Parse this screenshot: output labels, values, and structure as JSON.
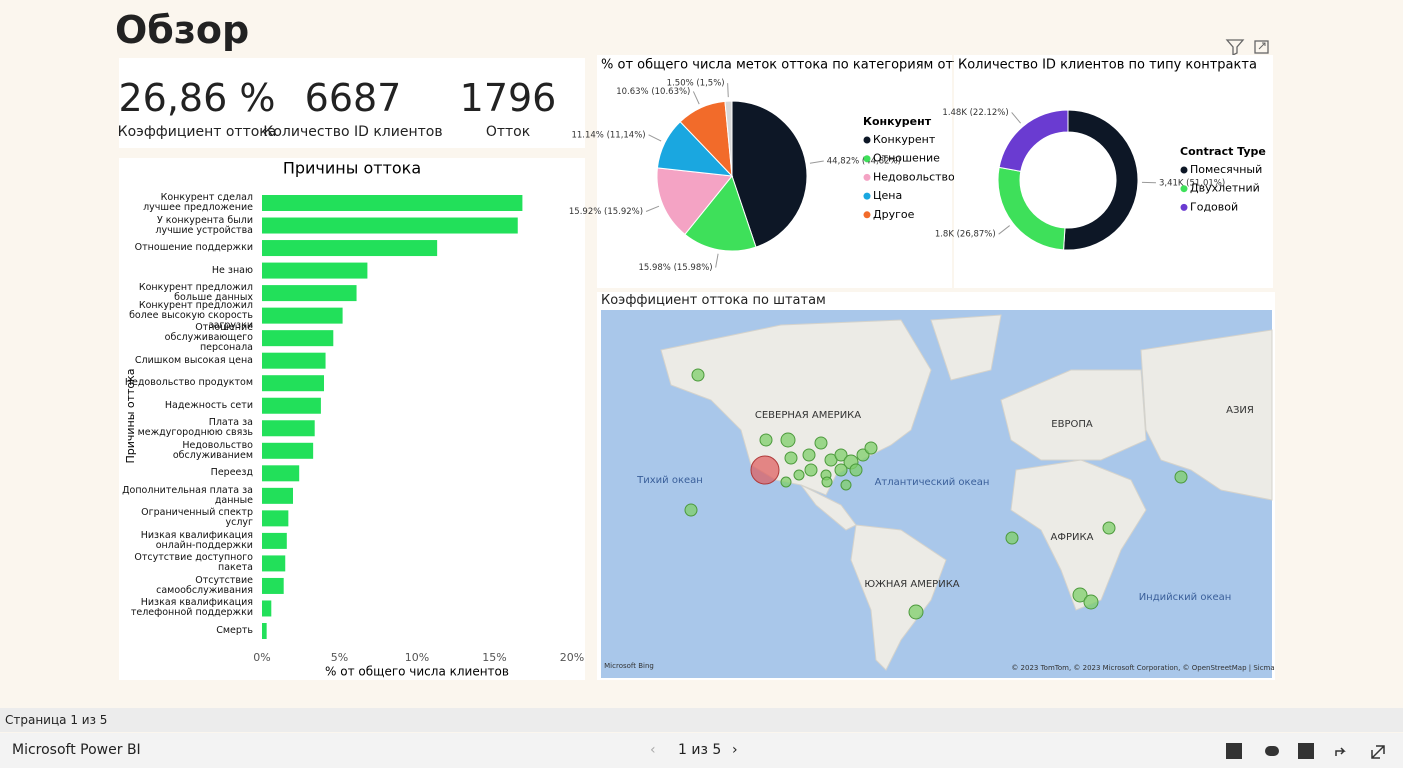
{
  "header": {
    "title": "Обзор"
  },
  "kpis": [
    {
      "value": "26,86 %",
      "label": "Коэффициент оттока"
    },
    {
      "value": "6687",
      "label": "Количество ID клиентов"
    },
    {
      "value": "1796",
      "label": "Отток"
    }
  ],
  "bar_chart": {
    "type": "bar",
    "title": "Причины оттока",
    "y_label": "Причины оттока",
    "x_label": "% от общего числа клиентов",
    "color": "#22e05a",
    "categories": [
      "Конкурент сделал лучшее предложение",
      "У конкурента были лучшие устройства",
      "Отношение поддержки",
      "Не знаю",
      "Конкурент предложил больше данных",
      "Конкурент предложил более высокую скорость загрузки",
      "Отношение обслуживающего персонала",
      "Слишком высокая цена",
      "Недовольство продуктом",
      "Надежность сети",
      "Плата за междугороднюю связь",
      "Недовольство обслуживанием",
      "Переезд",
      "Дополнительная плата за данные",
      "Ограниченный спектр услуг",
      "Низкая квалификация онлайн-поддержки",
      "Отсутствие доступного пакета",
      "Отсутствие самообслуживания",
      "Низкая квалификация телефонной поддержки",
      "Смерть"
    ],
    "values": [
      16.8,
      16.5,
      11.3,
      6.8,
      6.1,
      5.2,
      4.6,
      4.1,
      4.0,
      3.8,
      3.4,
      3.3,
      2.4,
      2.0,
      1.7,
      1.6,
      1.5,
      1.4,
      0.6,
      0.3
    ],
    "xlim": [
      0,
      20
    ],
    "xticks": [
      {
        "value": 0,
        "label": "0%"
      },
      {
        "value": 5,
        "label": "5%"
      },
      {
        "value": 10,
        "label": "10%"
      },
      {
        "value": 15,
        "label": "15%"
      },
      {
        "value": 20,
        "label": "20%"
      }
    ]
  },
  "pie_chart": {
    "type": "pie",
    "title": "% от общего числа меток оттока по категориям оттока",
    "legend_title": "Конкурент",
    "categories": [
      "Конкурент",
      "Отношение",
      "Недовольство",
      "Цена",
      "Другое",
      null
    ],
    "values": [
      44.82,
      15.98,
      15.92,
      11.14,
      10.63,
      1.5
    ],
    "value_labels": [
      "44,82% (44,82%)",
      "15.98% (15.98%)",
      "15.92% (15.92%)",
      "11.14% (11,14%)",
      "10.63% (10.63%)",
      "1.50% (1,5%)"
    ],
    "colors": [
      "#0d1726",
      "#3ee05a",
      "#f4a3c4",
      "#1aa7e0",
      "#f26b2a",
      "#d8d8d8"
    ]
  },
  "donut_chart": {
    "type": "donut",
    "title": "Количество ID клиентов по типу контракта",
    "legend_title": "Contract Type",
    "categories": [
      "Помесячный",
      "Двухлетний",
      "Годовой"
    ],
    "values": [
      51.01,
      26.87,
      22.12
    ],
    "value_labels": [
      "3,41K (51,01%)",
      "1.8K (26,87%)",
      "1.48K (22.12%)"
    ],
    "colors": [
      "#0d1726",
      "#3ee05a",
      "#6a3bd1"
    ]
  },
  "map": {
    "title": "Коэффициент оттока по штатам",
    "labels": {
      "na": "СЕВЕРНАЯ АМЕРИКА",
      "eu": "ЕВРОПА",
      "as": "АЗИЯ",
      "pac": "Тихий океан",
      "atl": "Атлантический океан",
      "af": "АФРИКА",
      "sa": "ЮЖНАЯ АМЕРИКА",
      "ind": "Индийский океан"
    },
    "attribution": "© 2023 TomTom, © 2023 Microsoft Corporation, © OpenStreetMap | Sicma",
    "bing": "Microsoft Bing"
  },
  "status": "Страница 1 из 5",
  "footer": {
    "brand": "Microsoft Power BI",
    "pager": "1 из 5"
  }
}
